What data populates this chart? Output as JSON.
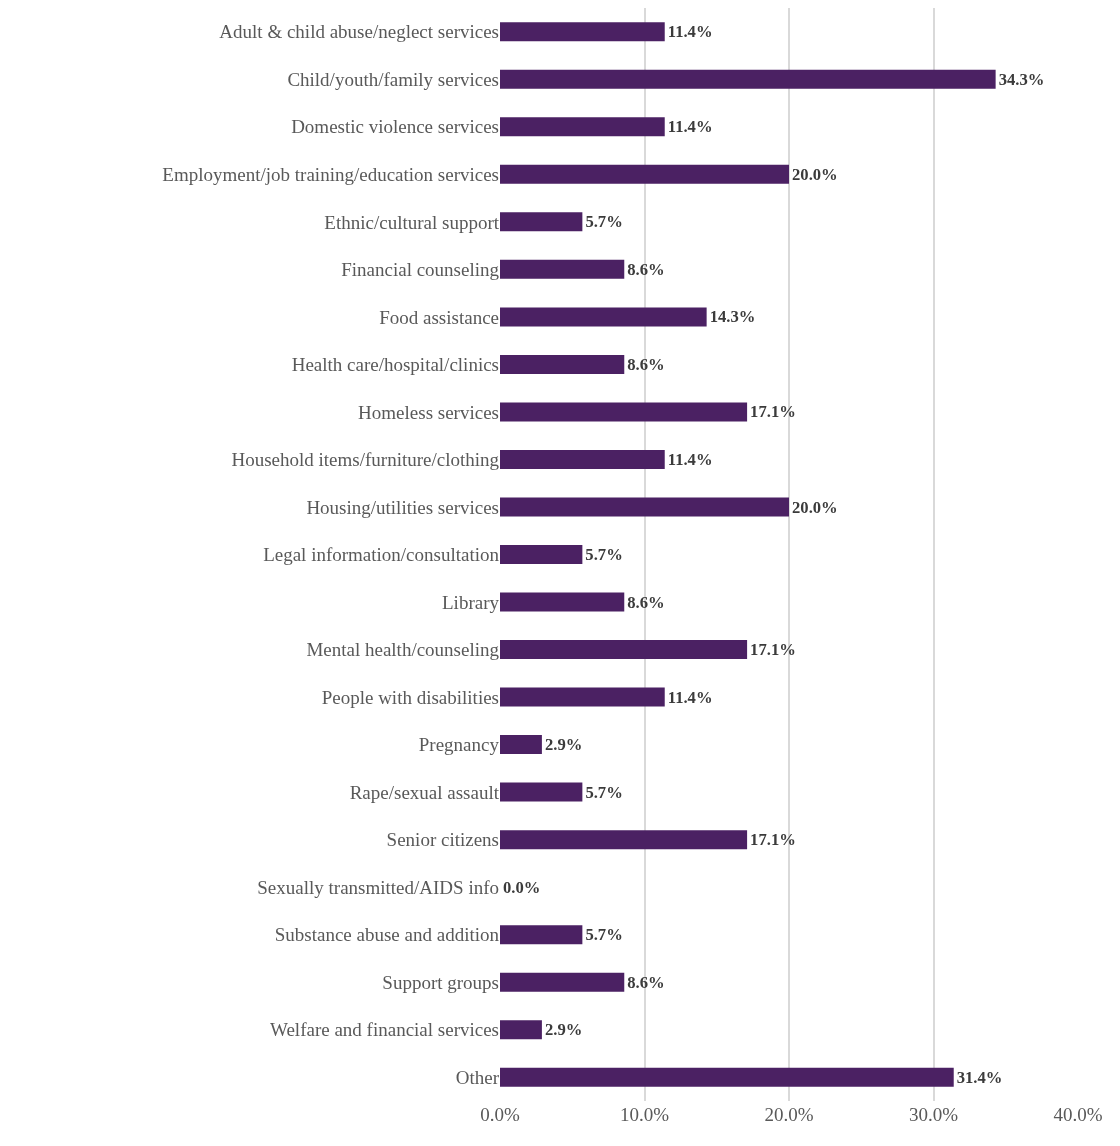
{
  "chart_data": {
    "type": "bar",
    "orientation": "horizontal",
    "categories": [
      "Adult & child abuse/neglect services",
      "Child/youth/family services",
      "Domestic violence services",
      "Employment/job training/education services",
      "Ethnic/cultural support",
      "Financial counseling",
      "Food assistance",
      "Health care/hospital/clinics",
      "Homeless services",
      "Household items/furniture/clothing",
      "Housing/utilities services",
      "Legal information/consultation",
      "Library",
      "Mental health/counseling",
      "People with disabilities",
      "Pregnancy",
      "Rape/sexual assault",
      "Senior citizens",
      "Sexually transmitted/AIDS info",
      "Substance abuse and addition",
      "Support groups",
      "Welfare and financial services",
      "Other"
    ],
    "values": [
      11.4,
      34.3,
      11.4,
      20.0,
      5.7,
      8.6,
      14.3,
      8.6,
      17.1,
      11.4,
      20.0,
      5.7,
      8.6,
      17.1,
      11.4,
      2.9,
      5.7,
      17.1,
      0.0,
      5.7,
      8.6,
      2.9,
      31.4
    ],
    "value_labels": [
      "11.4%",
      "34.3%",
      "11.4%",
      "20.0%",
      "5.7%",
      "8.6%",
      "14.3%",
      "8.6%",
      "17.1%",
      "11.4%",
      "20.0%",
      "5.7%",
      "8.6%",
      "17.1%",
      "11.4%",
      "2.9%",
      "5.7%",
      "17.1%",
      "0.0%",
      "5.7%",
      "8.6%",
      "2.9%",
      "31.4%"
    ],
    "color": "#4b2163",
    "xlim": [
      0,
      40
    ],
    "xticks": [
      {
        "value": 0,
        "label": "0.0%"
      },
      {
        "value": 10,
        "label": "10.0%"
      },
      {
        "value": 20,
        "label": "20.0%"
      },
      {
        "value": 30,
        "label": "30.0%"
      },
      {
        "value": 40,
        "label": "40.0%"
      }
    ],
    "grid": "x",
    "legend": false
  }
}
